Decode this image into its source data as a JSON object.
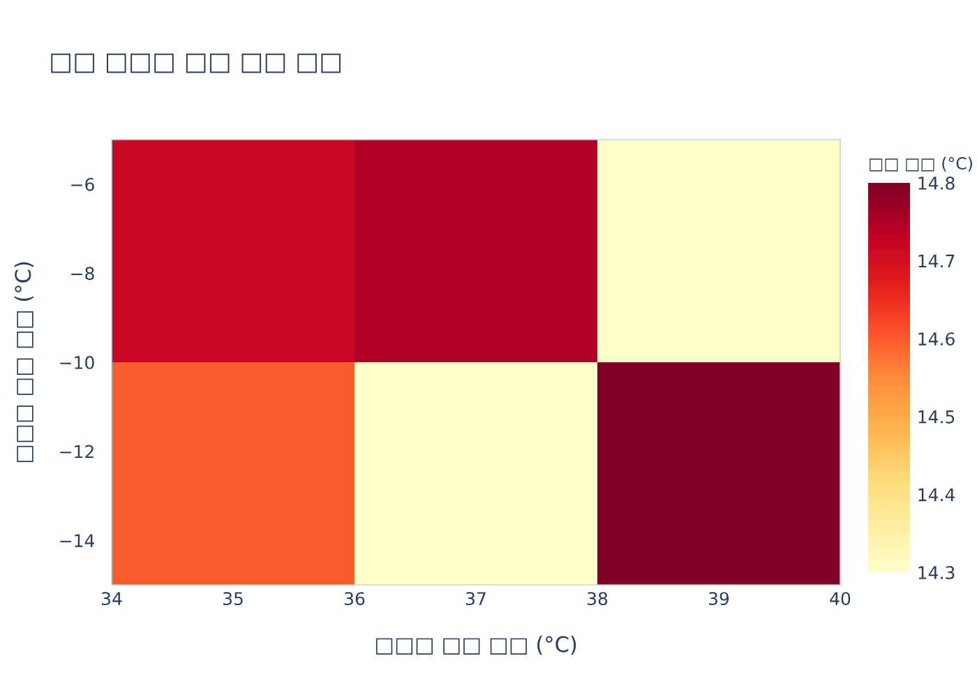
{
  "chart_data": {
    "type": "heatmap",
    "title": "□□ □□□ □□ □□ □□",
    "xlabel": "□□□ □□ □□ (°C)",
    "ylabel": "□□□ □□ □□ (°C)",
    "clabel": "□□ □□ (°C)",
    "cells": [
      [
        14.72,
        14.75,
        14.3
      ],
      [
        14.6,
        14.3,
        14.8
      ]
    ],
    "xlim": [
      34,
      40
    ],
    "xticks": [
      34,
      35,
      36,
      37,
      38,
      39,
      40
    ],
    "ylim": [
      -15,
      -5
    ],
    "yticks": [
      {
        "value": -14,
        "label": "−14"
      },
      {
        "value": -12,
        "label": "−12"
      },
      {
        "value": -10,
        "label": "−10"
      },
      {
        "value": -8,
        "label": "−8"
      },
      {
        "value": -6,
        "label": "−6"
      }
    ],
    "clim": [
      14.3,
      14.8
    ],
    "cticks": [
      14.3,
      14.4,
      14.5,
      14.6,
      14.7,
      14.8
    ]
  }
}
